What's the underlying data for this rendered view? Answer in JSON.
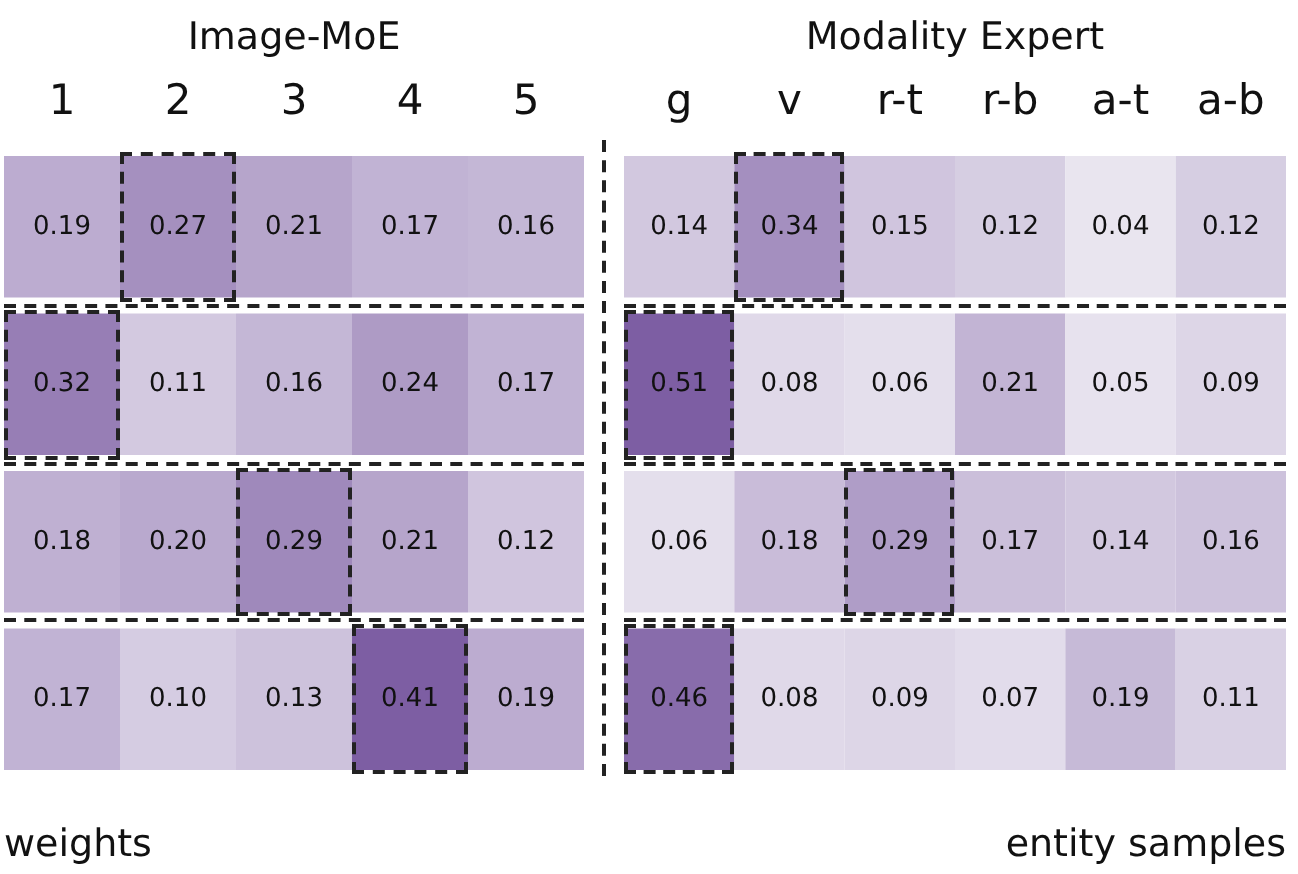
{
  "chart_data": [
    {
      "type": "heatmap",
      "title": "Image-MoE",
      "color": "#7d5ea3",
      "categories": [
        "1",
        "2",
        "3",
        "4",
        "5"
      ],
      "y_categories": [
        null,
        null,
        null,
        null
      ],
      "cells": [
        [
          0.19,
          0.27,
          0.21,
          0.17,
          0.16
        ],
        [
          0.32,
          0.11,
          0.16,
          0.24,
          0.17
        ],
        [
          0.18,
          0.2,
          0.29,
          0.21,
          0.12
        ],
        [
          0.17,
          0.1,
          0.13,
          0.41,
          0.19
        ]
      ],
      "cell_labels": [
        [
          "0.19",
          "0.27",
          "0.21",
          "0.17",
          "0.16"
        ],
        [
          "0.32",
          "0.11",
          "0.16",
          "0.24",
          "0.17"
        ],
        [
          "0.18",
          "0.20",
          "0.29",
          "0.21",
          "0.12"
        ],
        [
          "0.17",
          "0.10",
          "0.13",
          "0.41",
          "0.19"
        ]
      ],
      "annotations": [
        "weights"
      ]
    },
    {
      "type": "heatmap",
      "title": "Modality Expert",
      "color": "#7d5ea3",
      "categories": [
        "g",
        "v",
        "r-t",
        "r-b",
        "a-t",
        "a-b"
      ],
      "y_categories": [
        null,
        null,
        null,
        null
      ],
      "cells": [
        [
          0.14,
          0.34,
          0.15,
          0.12,
          0.04,
          0.12
        ],
        [
          0.51,
          0.08,
          0.06,
          0.21,
          0.05,
          0.09
        ],
        [
          0.06,
          0.18,
          0.29,
          0.17,
          0.14,
          0.16
        ],
        [
          0.46,
          0.08,
          0.09,
          0.07,
          0.19,
          0.11
        ]
      ],
      "data_labels": true,
      "annotations": [
        "entity samples"
      ]
    }
  ]
}
